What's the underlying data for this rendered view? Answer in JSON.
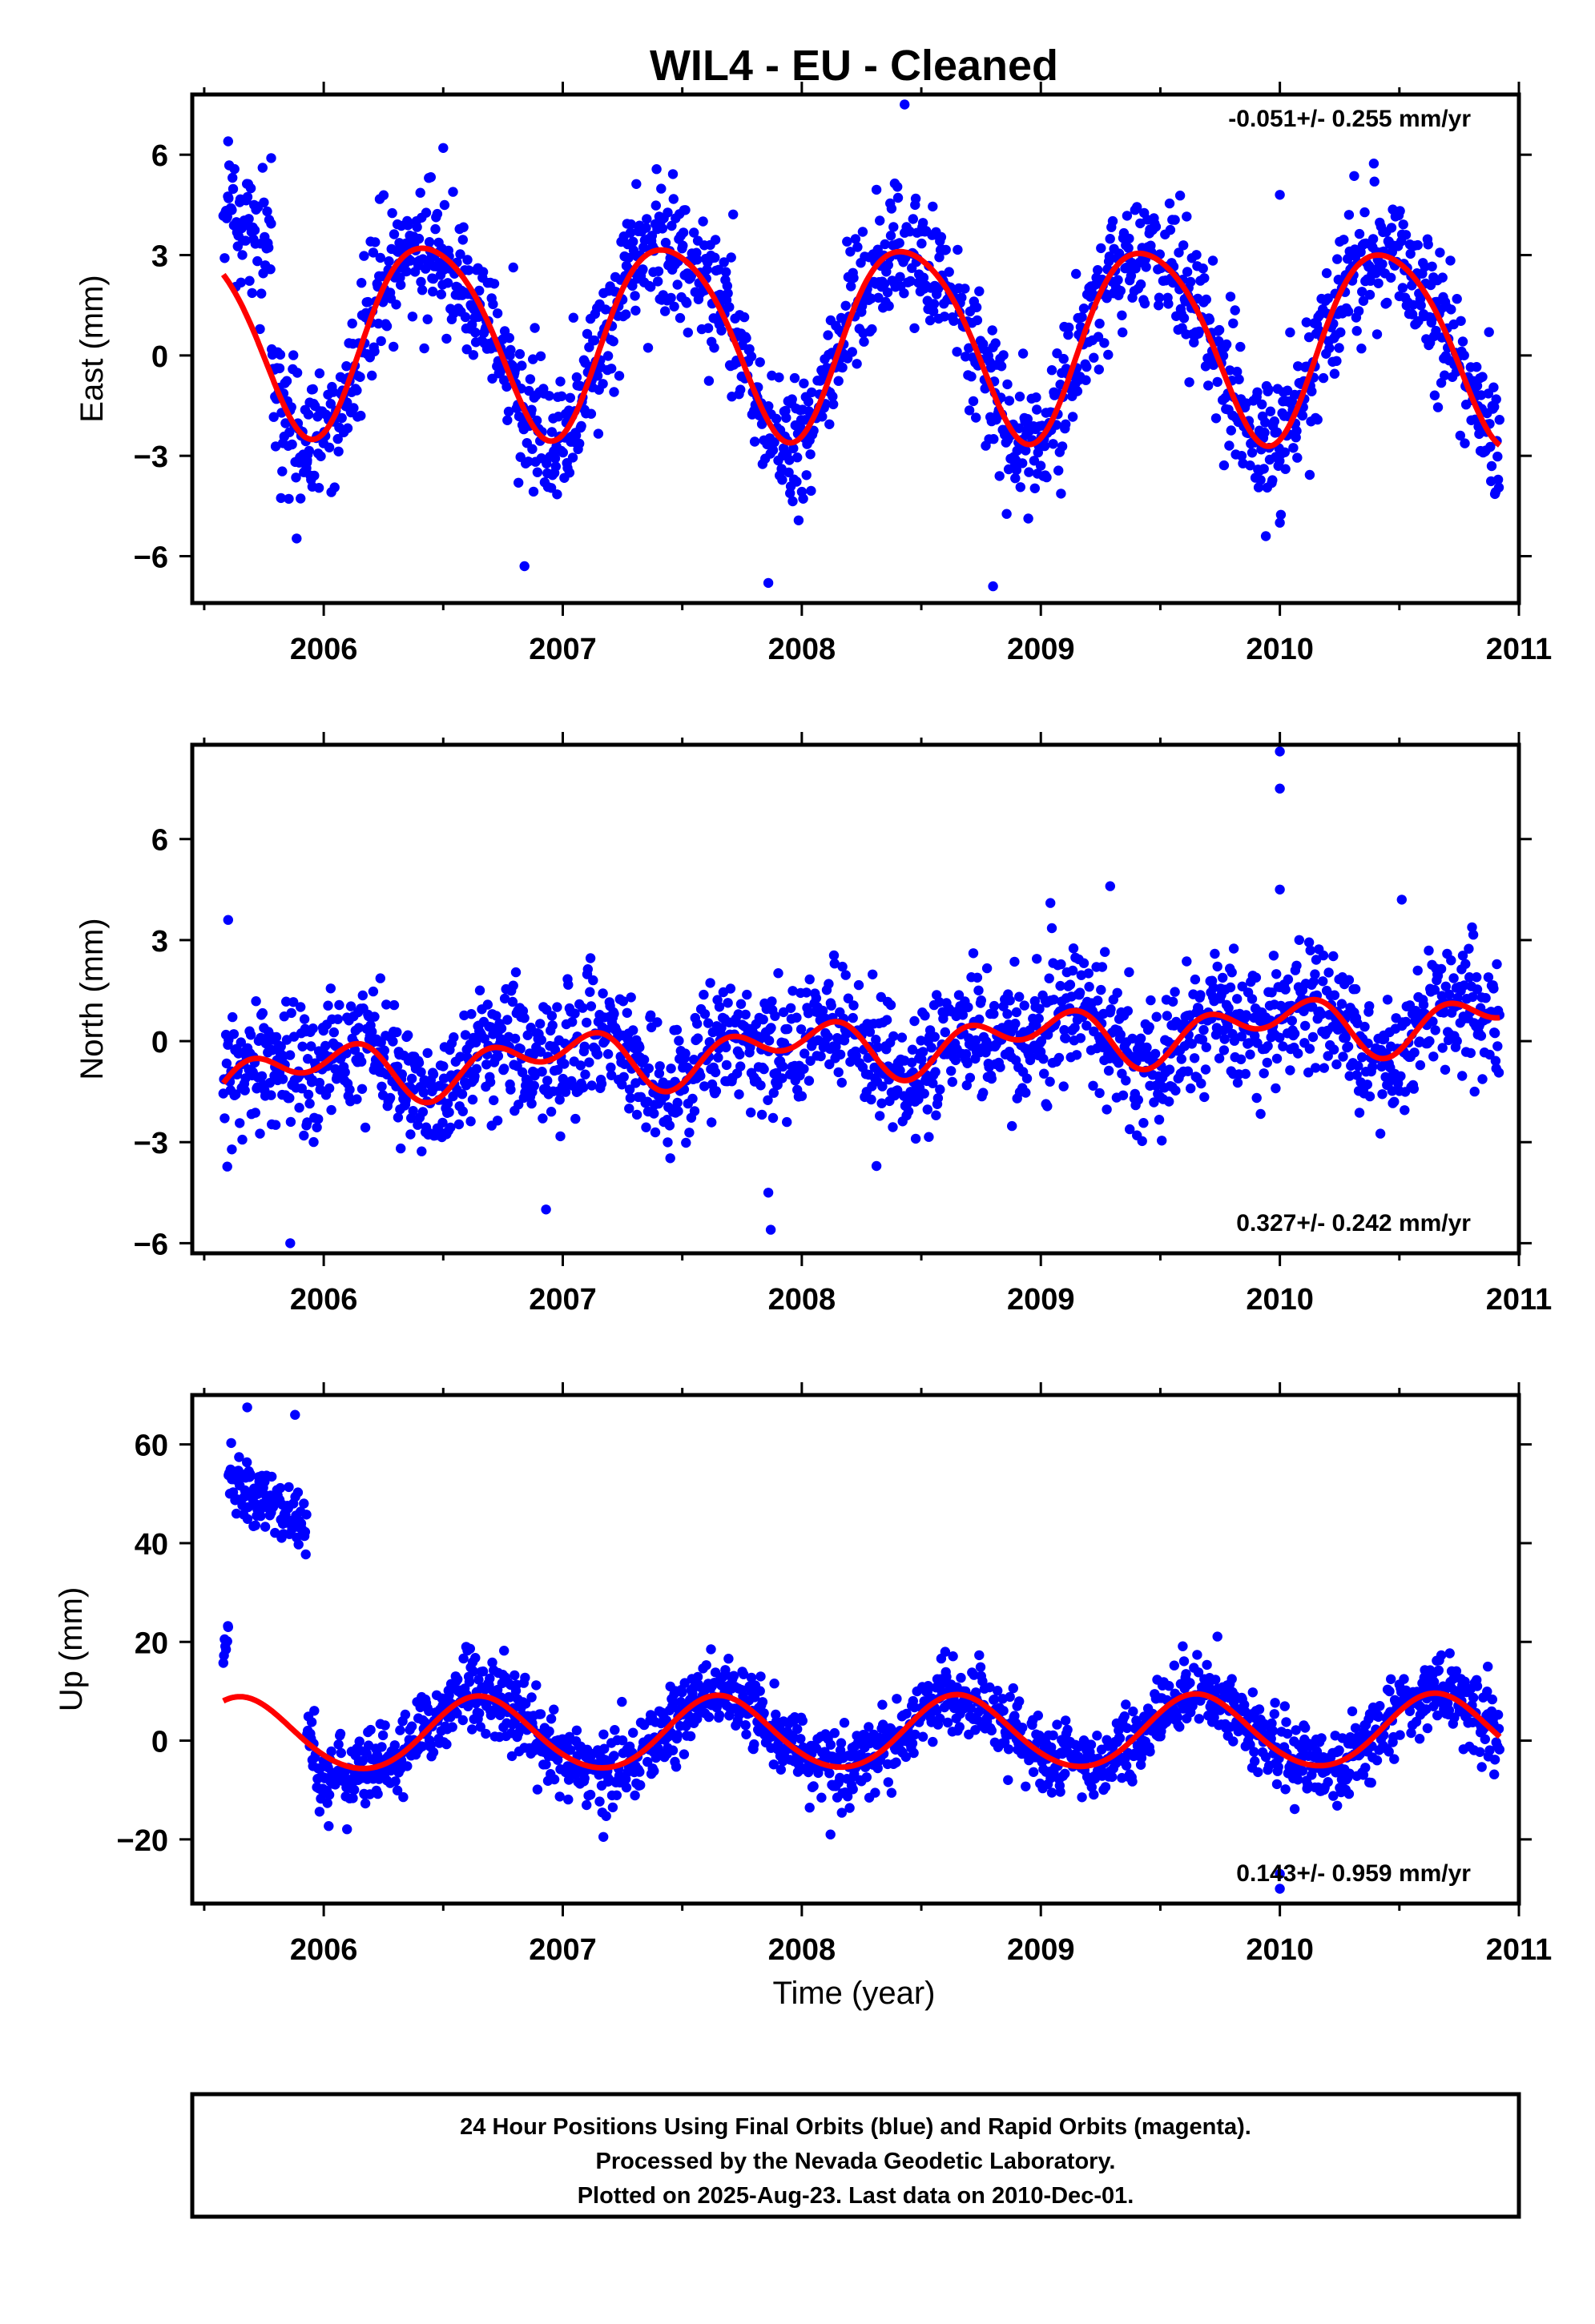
{
  "title": "WIL4  - EU - Cleaned",
  "xlabel": "Time (year)",
  "colors": {
    "points": "#0000ff",
    "fit": "#ff0000",
    "frame": "#000000",
    "background": "#ffffff"
  },
  "footer": {
    "line1": "24 Hour Positions Using Final Orbits (blue) and Rapid Orbits (magenta).",
    "line2": "Processed by the Nevada Geodetic Laboratory.",
    "line3": "Plotted on 2025-Aug-23. Last data on 2010-Dec-01."
  },
  "chart_data": [
    {
      "type": "scatter",
      "ylabel": "East (mm)",
      "rate_text": "-0.051+/- 0.255 mm/yr",
      "rate_position": "top-right",
      "xlim": [
        2005.45,
        2011.0
      ],
      "ylim": [
        -7.4,
        7.8
      ],
      "xticks": [
        2006,
        2007,
        2008,
        2009,
        2010,
        2011
      ],
      "xtick_labels": [
        "2006",
        "2007",
        "2008",
        "2009",
        "2010",
        "2011"
      ],
      "yticks": [
        -6,
        -3,
        0,
        3,
        6
      ],
      "ytick_labels": [
        "−6",
        "−3",
        "0",
        "3",
        "6"
      ],
      "data_start": 2005.58,
      "data_end": 2010.92,
      "gaps": [],
      "series": [
        {
          "kind": "points",
          "color": "#0000ff",
          "model": {
            "offset": 0.55,
            "amp": 2.85,
            "phase": 0.19,
            "amp2": 0.35,
            "phase2": 0.1,
            "trend": -0.051,
            "ref": 2008.25,
            "noise": 1.0
          },
          "segments": [
            {
              "from": 2005.58,
              "to": 2005.78,
              "offset": 4.6,
              "amp": 1.0,
              "trend": -8.0,
              "noise": 1.0
            }
          ],
          "outliers": [
            {
              "x": 2005.6,
              "y": 6.4
            },
            {
              "x": 2005.78,
              "y": 5.9
            },
            {
              "x": 2008.43,
              "y": 7.5
            },
            {
              "x": 2007.86,
              "y": -6.8
            },
            {
              "x": 2008.8,
              "y": -6.9
            },
            {
              "x": 2010.0,
              "y": -5.0
            },
            {
              "x": 2010.0,
              "y": 4.8
            },
            {
              "x": 2005.93,
              "y": -3.2
            },
            {
              "x": 2006.84,
              "y": -6.3
            },
            {
              "x": 2006.5,
              "y": 6.2
            }
          ]
        },
        {
          "kind": "fit",
          "name": "",
          "color": "#ff0000",
          "model": {
            "offset": 0.55,
            "amp": 2.85,
            "phase": 0.19,
            "amp2": 0.35,
            "phase2": 0.1,
            "trend": -0.051,
            "ref": 2008.25
          }
        }
      ]
    },
    {
      "type": "scatter",
      "ylabel": "North (mm)",
      "rate_text": "0.327+/- 0.242 mm/yr",
      "rate_position": "bottom-right",
      "xlim": [
        2005.45,
        2011.0
      ],
      "ylim": [
        -6.3,
        8.8
      ],
      "xticks": [
        2006,
        2007,
        2008,
        2009,
        2010,
        2011
      ],
      "xtick_labels": [
        "2006",
        "2007",
        "2008",
        "2009",
        "2010",
        "2011"
      ],
      "yticks": [
        -6,
        -3,
        0,
        3,
        6
      ],
      "ytick_labels": [
        "−6",
        "−3",
        "0",
        "3",
        "6"
      ],
      "data_start": 2005.58,
      "data_end": 2010.92,
      "gaps": [],
      "series": [
        {
          "kind": "points",
          "color": "#0000ff",
          "model": {
            "offset": -0.15,
            "amp": 0.55,
            "phase": 0.72,
            "amp2": 0.55,
            "phase2": 0.55,
            "trend": 0.327,
            "ref": 2008.25,
            "noise": 0.95
          },
          "segments": [],
          "outliers": [
            {
              "x": 2005.6,
              "y": 3.6
            },
            {
              "x": 2005.86,
              "y": -6.0
            },
            {
              "x": 2010.0,
              "y": 8.6
            },
            {
              "x": 2010.0,
              "y": 7.5
            },
            {
              "x": 2010.0,
              "y": 4.5
            },
            {
              "x": 2007.87,
              "y": -5.6
            },
            {
              "x": 2007.86,
              "y": -4.5
            },
            {
              "x": 2006.93,
              "y": -5.0
            },
            {
              "x": 2009.29,
              "y": 4.6
            },
            {
              "x": 2010.51,
              "y": 4.2
            },
            {
              "x": 2009.04,
              "y": 4.1
            }
          ]
        },
        {
          "kind": "fit",
          "name": "",
          "color": "#ff0000",
          "model": {
            "offset": -0.15,
            "amp": 0.55,
            "phase": 0.72,
            "amp2": 0.55,
            "phase2": 0.55,
            "trend": 0.327,
            "ref": 2008.25
          }
        }
      ]
    },
    {
      "type": "scatter",
      "ylabel": "Up (mm)",
      "rate_text": "0.143+/- 0.959 mm/yr",
      "rate_position": "bottom-right",
      "xlim": [
        2005.45,
        2011.0
      ],
      "ylim": [
        -33.0,
        70.0
      ],
      "xticks": [
        2006,
        2007,
        2008,
        2009,
        2010,
        2011
      ],
      "xtick_labels": [
        "2006",
        "2007",
        "2008",
        "2009",
        "2010",
        "2011"
      ],
      "yticks": [
        -20,
        0,
        20,
        40,
        60
      ],
      "ytick_labels": [
        "−20",
        "0",
        "20",
        "40",
        "60"
      ],
      "data_start": 2005.58,
      "data_end": 2010.92,
      "gaps": [],
      "series": [
        {
          "kind": "points",
          "color": "#0000ff",
          "model": {
            "offset": 1.5,
            "amp": 7.3,
            "phase": 0.405,
            "amp2": 0.5,
            "phase2": 0.0,
            "trend": 0.143,
            "ref": 2008.25,
            "noise": 3.8
          },
          "segments": [
            {
              "from": 2005.58,
              "to": 2005.6,
              "offset": 19.0,
              "amp": 0,
              "trend": 0,
              "noise": 2.5
            },
            {
              "from": 2005.6,
              "to": 2005.93,
              "offset": 53.0,
              "amp": 0,
              "trend": -30.0,
              "noise": 3.2
            },
            {
              "from": 2005.97,
              "to": 2006.05,
              "offset": -9.0,
              "amp": 0,
              "trend": 0,
              "noise": 3.0
            }
          ],
          "outliers": [
            {
              "x": 2005.68,
              "y": 67.5
            },
            {
              "x": 2005.88,
              "y": 66.0
            },
            {
              "x": 2005.6,
              "y": 23.0
            },
            {
              "x": 2010.0,
              "y": -27.0
            },
            {
              "x": 2010.0,
              "y": -30.0
            },
            {
              "x": 2007.17,
              "y": -19.5
            },
            {
              "x": 2008.12,
              "y": -19.0
            },
            {
              "x": 2010.87,
              "y": 15.0
            },
            {
              "x": 2008.6,
              "y": 18.0
            },
            {
              "x": 2007.62,
              "y": 18.5
            }
          ]
        },
        {
          "kind": "fit",
          "name": "",
          "color": "#ff0000",
          "model": {
            "offset": 1.5,
            "amp": 7.3,
            "phase": 0.405,
            "amp2": 0.5,
            "phase2": 0.0,
            "trend": 0.143,
            "ref": 2008.25
          }
        }
      ]
    }
  ]
}
